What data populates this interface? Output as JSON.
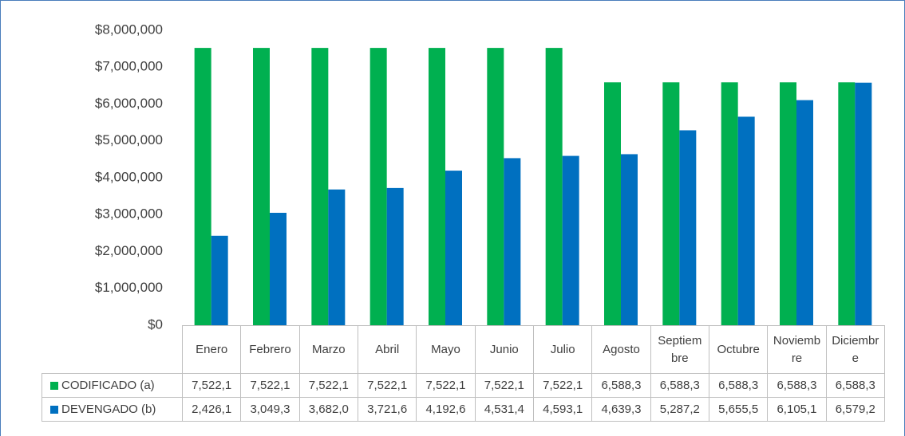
{
  "chart_data": {
    "type": "bar",
    "categories": [
      "Enero",
      "Febrero",
      "Marzo",
      "Abril",
      "Mayo",
      "Junio",
      "Julio",
      "Agosto",
      "Septiembre",
      "Octubre",
      "Noviembre",
      "Diciembre"
    ],
    "series": [
      {
        "name": "CODIFICADO (a)",
        "color": "#00b050",
        "values": [
          7522100,
          7522100,
          7522100,
          7522100,
          7522100,
          7522100,
          7522100,
          6588300,
          6588300,
          6588300,
          6588300,
          6588300
        ],
        "value_labels": [
          "7,522,1",
          "7,522,1",
          "7,522,1",
          "7,522,1",
          "7,522,1",
          "7,522,1",
          "7,522,1",
          "6,588,3",
          "6,588,3",
          "6,588,3",
          "6,588,3",
          "6,588,3"
        ]
      },
      {
        "name": "DEVENGADO (b)",
        "color": "#0070c0",
        "values": [
          2426100,
          3049300,
          3682000,
          3721600,
          4192600,
          4531400,
          4593100,
          4639300,
          5287200,
          5655500,
          6105100,
          6579200
        ],
        "value_labels": [
          "2,426,1",
          "3,049,3",
          "3,682,0",
          "3,721,6",
          "4,192,6",
          "4,531,4",
          "4,593,1",
          "4,639,3",
          "5,287,2",
          "5,655,5",
          "6,105,1",
          "6,579,2"
        ]
      }
    ],
    "ylim": [
      0,
      8000000
    ],
    "yticks": [
      {
        "value": 0,
        "label": "$0"
      },
      {
        "value": 1000000,
        "label": "$1,000,000"
      },
      {
        "value": 2000000,
        "label": "$2,000,000"
      },
      {
        "value": 3000000,
        "label": "$3,000,000"
      },
      {
        "value": 4000000,
        "label": "$4,000,000"
      },
      {
        "value": 5000000,
        "label": "$5,000,000"
      },
      {
        "value": 6000000,
        "label": "$6,000,000"
      },
      {
        "value": 7000000,
        "label": "$7,000,000"
      },
      {
        "value": 8000000,
        "label": "$8,000,000"
      }
    ],
    "grid": false
  }
}
